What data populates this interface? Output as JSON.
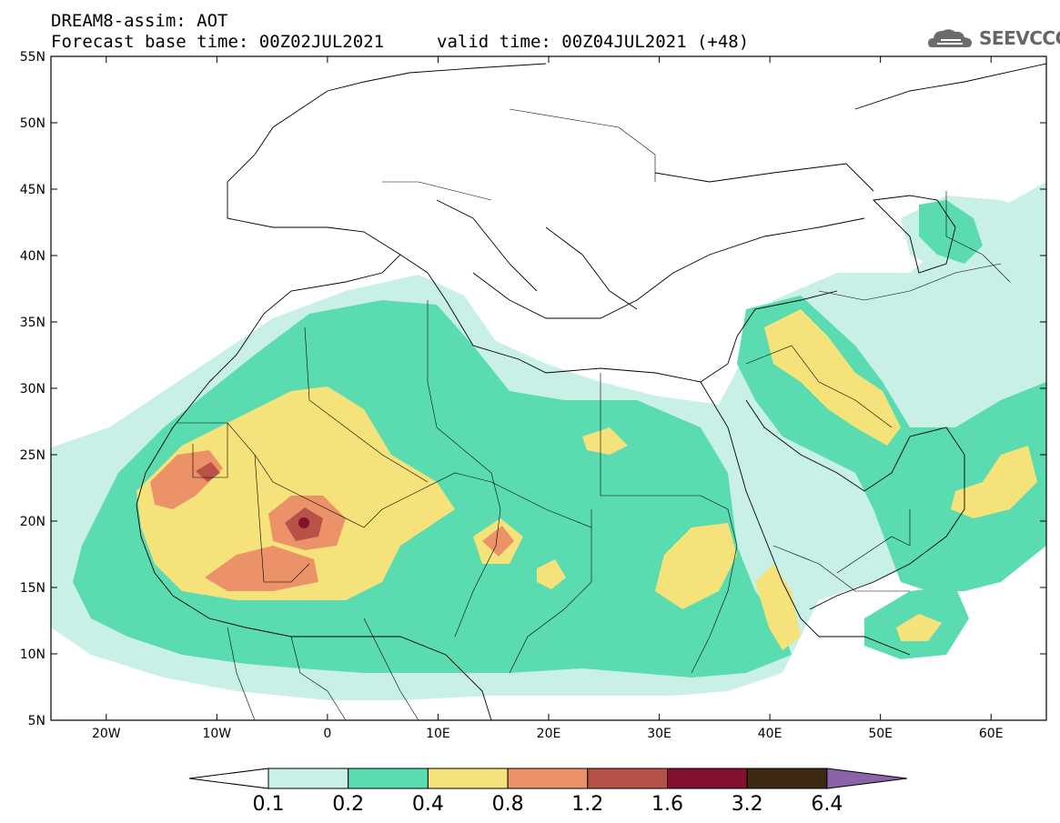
{
  "header": {
    "line1": "DREAM8-assim: AOT",
    "line2": "Forecast base time: 00Z02JUL2021",
    "valid": "valid time: 00Z04JUL2021 (+48)",
    "logo_text": "SEEVCCC"
  },
  "map": {
    "lon_range": [
      -25,
      65
    ],
    "lat_range": [
      5,
      55
    ],
    "lon_ticks": [
      {
        "value": -20,
        "label": "20W"
      },
      {
        "value": -10,
        "label": "10W"
      },
      {
        "value": 0,
        "label": "0"
      },
      {
        "value": 10,
        "label": "10E"
      },
      {
        "value": 20,
        "label": "20E"
      },
      {
        "value": 30,
        "label": "30E"
      },
      {
        "value": 40,
        "label": "40E"
      },
      {
        "value": 50,
        "label": "50E"
      },
      {
        "value": 60,
        "label": "60E"
      }
    ],
    "lat_ticks": [
      {
        "value": 55,
        "label": "55N"
      },
      {
        "value": 50,
        "label": "50N"
      },
      {
        "value": 45,
        "label": "45N"
      },
      {
        "value": 40,
        "label": "40N"
      },
      {
        "value": 35,
        "label": "35N"
      },
      {
        "value": 30,
        "label": "30N"
      },
      {
        "value": 25,
        "label": "25N"
      },
      {
        "value": 20,
        "label": "20N"
      },
      {
        "value": 15,
        "label": "15N"
      },
      {
        "value": 10,
        "label": "10N"
      },
      {
        "value": 5,
        "label": "5N"
      }
    ]
  },
  "colorbar": {
    "colors": [
      "#c8f0e6",
      "#5bdcb0",
      "#f5e27a",
      "#ec9268",
      "#b85248",
      "#850f2e",
      "#3e2a14"
    ],
    "below_color": "#ffffff",
    "above_color": "#8a63a8",
    "labels": [
      "0.1",
      "0.2",
      "0.4",
      "0.8",
      "1.2",
      "1.6",
      "3.2",
      "6.4"
    ]
  }
}
